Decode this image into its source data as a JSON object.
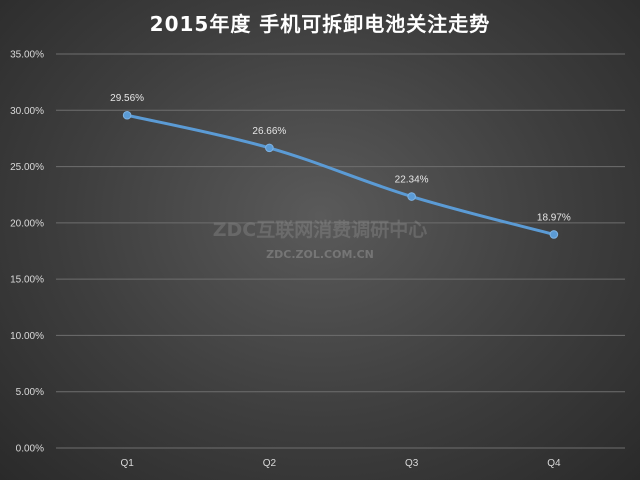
{
  "chart_data": {
    "type": "line",
    "title": "2015年度 手机可拆卸电池关注走势",
    "categories": [
      "Q1",
      "Q2",
      "Q3",
      "Q4"
    ],
    "series": [
      {
        "values": [
          29.56,
          26.66,
          22.34,
          18.97
        ]
      }
    ],
    "data_labels": [
      "29.56%",
      "26.66%",
      "22.34%",
      "18.97%"
    ],
    "y_ticks": [
      "0.00%",
      "5.00%",
      "10.00%",
      "15.00%",
      "20.00%",
      "25.00%",
      "30.00%",
      "35.00%"
    ],
    "ylim": [
      0,
      35
    ],
    "grid": true,
    "legend": "none",
    "line_color": "#5b9bd5"
  },
  "watermark": {
    "main": "ZDC互联网消费调研中心",
    "sub": "ZDC.ZOL.COM.CN"
  }
}
